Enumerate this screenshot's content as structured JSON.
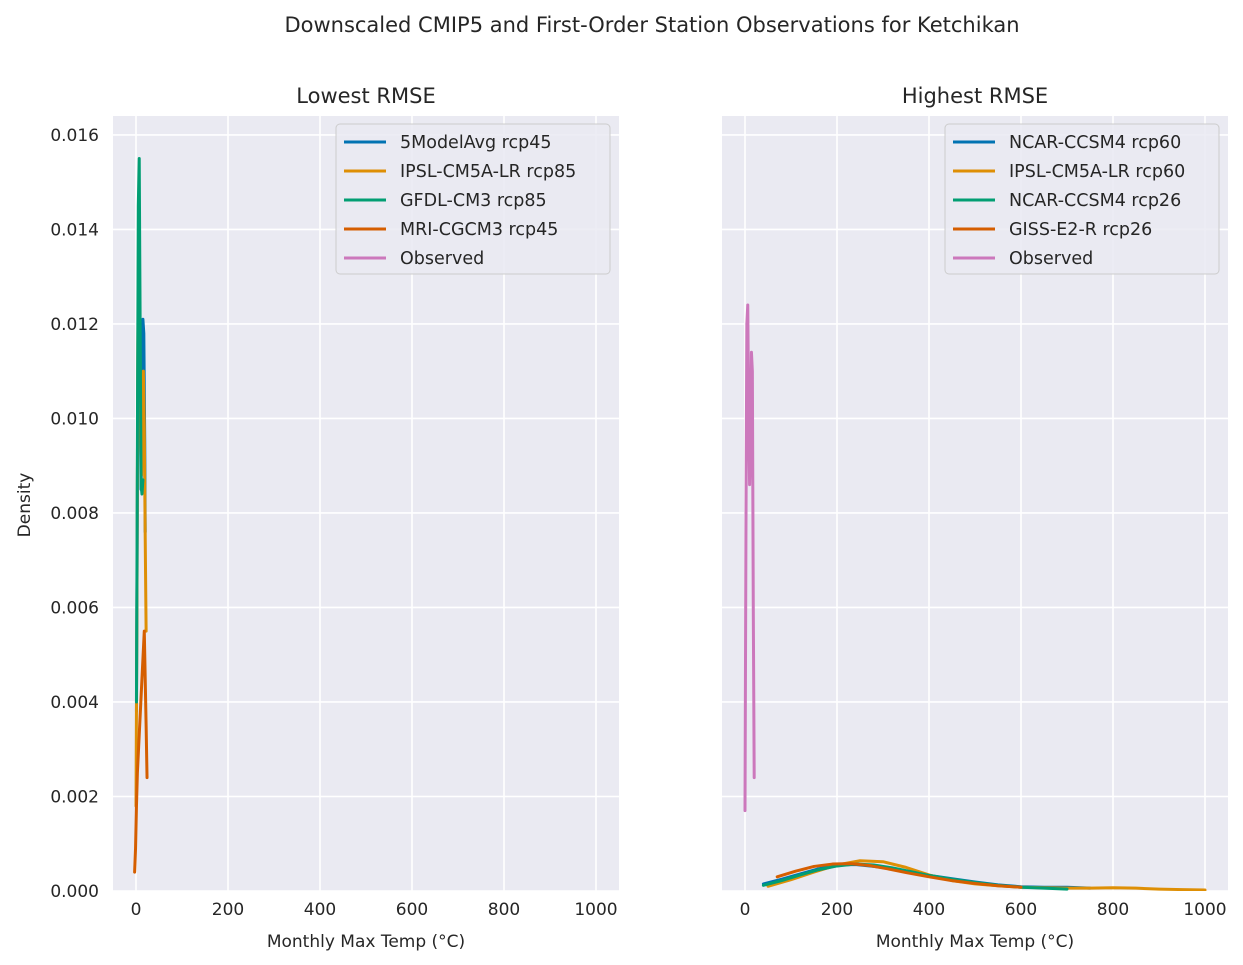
{
  "figure": {
    "suptitle": "Downscaled CMIP5 and First-Order Station Observations for Ketchikan",
    "ylabel": "Density"
  },
  "chart_data": [
    {
      "type": "line",
      "title": "Lowest RMSE",
      "xlabel": "Monthly Max Temp (°C)",
      "ylabel": "Density",
      "xlim": [
        -50,
        1050
      ],
      "ylim": [
        0,
        0.0164
      ],
      "xticks": [
        "0",
        "200",
        "400",
        "600",
        "800",
        "1000"
      ],
      "yticks": [
        "0.000",
        "0.002",
        "0.004",
        "0.006",
        "0.008",
        "0.010",
        "0.012",
        "0.014",
        "0.016"
      ],
      "grid": true,
      "legend_position": "upper-right",
      "series": [
        {
          "name": "5ModelAvg rcp45",
          "color": "#0173b2",
          "x": [
            1,
            3,
            5,
            7,
            9,
            11,
            13,
            15,
            17,
            19,
            20
          ],
          "y": [
            0.0038,
            0.0085,
            0.0128,
            0.0133,
            0.011,
            0.0085,
            0.01,
            0.0121,
            0.0118,
            0.0095,
            0.0076
          ]
        },
        {
          "name": "IPSL-CM5A-LR rcp85",
          "color": "#de8f05",
          "x": [
            0,
            2,
            4,
            6,
            8,
            10,
            12,
            14,
            16,
            18,
            20,
            22
          ],
          "y": [
            0.0018,
            0.006,
            0.0115,
            0.0143,
            0.0125,
            0.0095,
            0.0088,
            0.0105,
            0.011,
            0.0098,
            0.0075,
            0.0055
          ]
        },
        {
          "name": "GFDL-CM3 rcp85",
          "color": "#029e73",
          "x": [
            1,
            3,
            5,
            7,
            9,
            11,
            13,
            15
          ],
          "y": [
            0.004,
            0.0095,
            0.0145,
            0.0155,
            0.012,
            0.0086,
            0.0084,
            0.0087
          ]
        },
        {
          "name": "MRI-CGCM3 rcp45",
          "color": "#d55e00",
          "x": [
            -3,
            -1,
            1,
            3,
            18,
            20,
            22,
            24
          ],
          "y": [
            0.0004,
            0.0009,
            0.0018,
            0.0025,
            0.0055,
            0.0045,
            0.0035,
            0.0024
          ]
        },
        {
          "name": "Observed",
          "color": "#cc78bc",
          "x": [],
          "y": []
        }
      ]
    },
    {
      "type": "line",
      "title": "Highest RMSE",
      "xlabel": "Monthly Max Temp (°C)",
      "ylabel": "",
      "xlim": [
        -50,
        1050
      ],
      "ylim": [
        0,
        0.0164
      ],
      "xticks": [
        "0",
        "200",
        "400",
        "600",
        "800",
        "1000"
      ],
      "yticks": [],
      "grid": true,
      "legend_position": "upper-right",
      "series": [
        {
          "name": "NCAR-CCSM4 rcp60",
          "color": "#0173b2",
          "x": [
            40,
            80,
            120,
            160,
            200,
            240,
            280,
            320,
            360,
            400,
            450,
            500,
            550,
            600,
            650,
            700,
            750
          ],
          "y": [
            0.00015,
            0.00025,
            0.00036,
            0.00047,
            0.00055,
            0.00056,
            0.00052,
            0.00047,
            0.0004,
            0.00033,
            0.00026,
            0.00019,
            0.00013,
            9e-05,
            8e-05,
            8e-05,
            6e-05
          ]
        },
        {
          "name": "IPSL-CM5A-LR rcp60",
          "color": "#de8f05",
          "x": [
            50,
            100,
            150,
            200,
            250,
            300,
            350,
            400,
            450,
            500,
            550,
            600,
            650,
            700,
            750,
            800,
            850,
            900,
            950,
            1000
          ],
          "y": [
            0.0001,
            0.00024,
            0.0004,
            0.00055,
            0.00064,
            0.00062,
            0.0005,
            0.00034,
            0.00022,
            0.00015,
            0.00011,
            8e-05,
            7e-05,
            6e-05,
            6e-05,
            7e-05,
            6e-05,
            4e-05,
            3e-05,
            2e-05
          ]
        },
        {
          "name": "NCAR-CCSM4 rcp26",
          "color": "#029e73",
          "x": [
            40,
            80,
            120,
            160,
            200,
            240,
            280,
            320,
            360,
            400,
            450,
            500,
            550,
            600,
            650,
            700
          ],
          "y": [
            0.00012,
            0.00022,
            0.00034,
            0.00045,
            0.00053,
            0.00057,
            0.00055,
            0.00049,
            0.00041,
            0.00033,
            0.00025,
            0.00018,
            0.00012,
            8e-05,
            6e-05,
            4e-05
          ]
        },
        {
          "name": "GISS-E2-R rcp26",
          "color": "#d55e00",
          "x": [
            70,
            110,
            150,
            190,
            230,
            270,
            310,
            350,
            400,
            450,
            500,
            550,
            600
          ],
          "y": [
            0.0003,
            0.00042,
            0.00052,
            0.00057,
            0.00058,
            0.00054,
            0.00047,
            0.00039,
            0.0003,
            0.00022,
            0.00016,
            0.00011,
            8e-05
          ]
        },
        {
          "name": "Observed",
          "color": "#cc78bc",
          "x": [
            0,
            2,
            4,
            6,
            8,
            10,
            12,
            14,
            16,
            18,
            20
          ],
          "y": [
            0.0017,
            0.0075,
            0.012,
            0.0124,
            0.01,
            0.0086,
            0.0095,
            0.0114,
            0.011,
            0.006,
            0.0024
          ]
        }
      ]
    }
  ]
}
